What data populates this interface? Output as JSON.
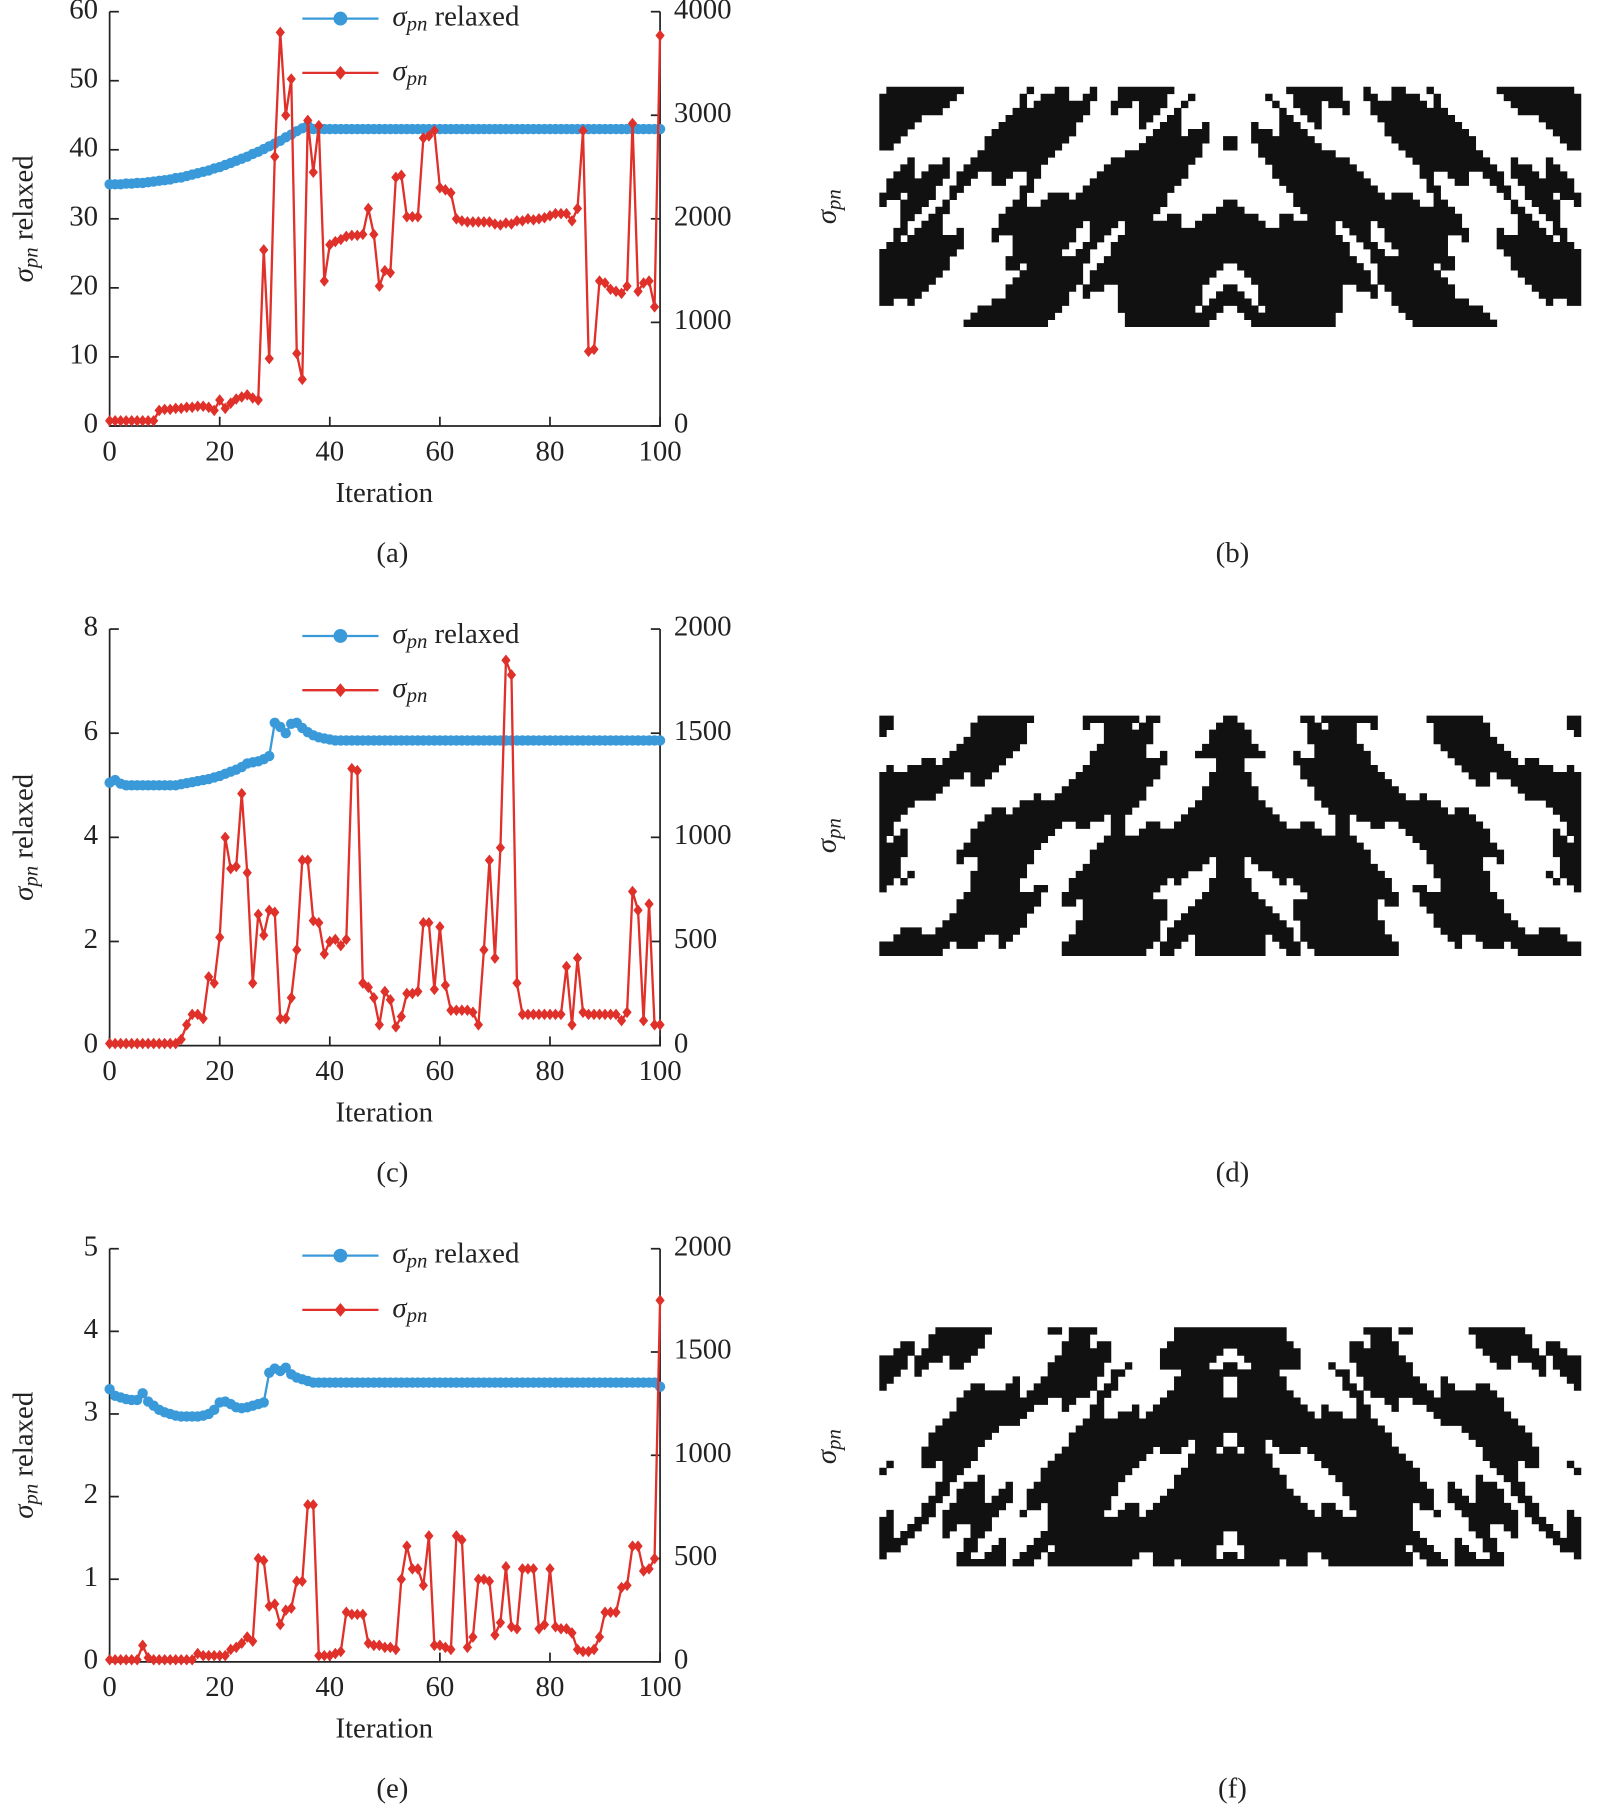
{
  "chart_data": [
    {
      "type": "line",
      "xlabel": "Iteration",
      "ylabel": "σpn relaxed",
      "caption": "(a)",
      "xlim": [
        0,
        100
      ],
      "xticks": [
        0,
        20,
        40,
        60,
        80,
        100
      ],
      "ylim": [
        0,
        60
      ],
      "yticks": [
        0,
        10,
        20,
        30,
        40,
        50,
        60
      ],
      "y2lim": [
        0,
        4000
      ],
      "y2ticks": [
        0,
        1000,
        2000,
        3000,
        4000
      ],
      "x": [
        0,
        1,
        2,
        3,
        4,
        5,
        6,
        7,
        8,
        9,
        10,
        11,
        12,
        13,
        14,
        15,
        16,
        17,
        18,
        19,
        20,
        21,
        22,
        23,
        24,
        25,
        26,
        27,
        28,
        29,
        30,
        31,
        32,
        33,
        34,
        35,
        36,
        37,
        38,
        39,
        40,
        41,
        42,
        43,
        44,
        45,
        46,
        47,
        48,
        49,
        50,
        51,
        52,
        53,
        54,
        55,
        56,
        57,
        58,
        59,
        60,
        61,
        62,
        63,
        64,
        65,
        66,
        67,
        68,
        69,
        70,
        71,
        72,
        73,
        74,
        75,
        76,
        77,
        78,
        79,
        80,
        81,
        82,
        83,
        84,
        85,
        86,
        87,
        88,
        89,
        90,
        91,
        92,
        93,
        94,
        95,
        96,
        97,
        98,
        99,
        100
      ],
      "series": [
        {
          "name": "σpn relaxed",
          "color": "#3a9ad9",
          "marker": "circle",
          "values": [
            35,
            35,
            35,
            35.1,
            35.1,
            35.2,
            35.2,
            35.3,
            35.4,
            35.5,
            35.6,
            35.7,
            35.9,
            36,
            36.2,
            36.4,
            36.6,
            36.8,
            37,
            37.3,
            37.5,
            37.8,
            38.1,
            38.4,
            38.7,
            39,
            39.4,
            39.7,
            40.1,
            40.5,
            40.9,
            41.3,
            41.8,
            42.2,
            42.7,
            43.1,
            43.5,
            43,
            43,
            43,
            43,
            43,
            43,
            43,
            43,
            43,
            43,
            43,
            43,
            43,
            43,
            43,
            43,
            43,
            43,
            43,
            43,
            43,
            43,
            43,
            43,
            43,
            43,
            43,
            43,
            43,
            43,
            43,
            43,
            43,
            43,
            43,
            43,
            43,
            43,
            43,
            43,
            43,
            43,
            43,
            43,
            43,
            43,
            43,
            43,
            43,
            43,
            43,
            43,
            43,
            43,
            43,
            43,
            43,
            43,
            43,
            43,
            43,
            43,
            43,
            43
          ]
        },
        {
          "name": "σpn",
          "color": "#e0302a",
          "marker": "diamond",
          "axis": "y2",
          "values": [
            50,
            50,
            50,
            50,
            50,
            50,
            50,
            50,
            50,
            150,
            160,
            160,
            170,
            170,
            180,
            180,
            190,
            190,
            180,
            150,
            250,
            170,
            220,
            260,
            280,
            300,
            270,
            250,
            1700,
            650,
            2600,
            3800,
            3000,
            3350,
            700,
            450,
            2950,
            2450,
            2900,
            1400,
            1750,
            1780,
            1800,
            1830,
            1840,
            1840,
            1850,
            2100,
            1850,
            1350,
            1500,
            1480,
            2400,
            2420,
            2020,
            2020,
            2020,
            2780,
            2800,
            2850,
            2300,
            2280,
            2250,
            2000,
            1980,
            1970,
            1970,
            1970,
            1970,
            1970,
            1950,
            1940,
            1960,
            1950,
            1980,
            1980,
            2000,
            1990,
            2000,
            2010,
            2030,
            2050,
            2050,
            2050,
            1980,
            2100,
            2850,
            720,
            740,
            1400,
            1380,
            1320,
            1300,
            1280,
            1350,
            2920,
            1300,
            1380,
            1400,
            1150,
            3770
          ]
        }
      ]
    },
    {
      "type": "line",
      "xlabel": "Iteration",
      "ylabel": "σpn relaxed",
      "caption": "(c)",
      "xlim": [
        0,
        100
      ],
      "xticks": [
        0,
        20,
        40,
        60,
        80,
        100
      ],
      "ylim": [
        0,
        8
      ],
      "yticks": [
        0,
        2,
        4,
        6,
        8
      ],
      "y2lim": [
        0,
        2000
      ],
      "y2ticks": [
        0,
        500,
        1000,
        1500,
        2000
      ],
      "x": [
        0,
        1,
        2,
        3,
        4,
        5,
        6,
        7,
        8,
        9,
        10,
        11,
        12,
        13,
        14,
        15,
        16,
        17,
        18,
        19,
        20,
        21,
        22,
        23,
        24,
        25,
        26,
        27,
        28,
        29,
        30,
        31,
        32,
        33,
        34,
        35,
        36,
        37,
        38,
        39,
        40,
        41,
        42,
        43,
        44,
        45,
        46,
        47,
        48,
        49,
        50,
        51,
        52,
        53,
        54,
        55,
        56,
        57,
        58,
        59,
        60,
        61,
        62,
        63,
        64,
        65,
        66,
        67,
        68,
        69,
        70,
        71,
        72,
        73,
        74,
        75,
        76,
        77,
        78,
        79,
        80,
        81,
        82,
        83,
        84,
        85,
        86,
        87,
        88,
        89,
        90,
        91,
        92,
        93,
        94,
        95,
        96,
        97,
        98,
        99,
        100
      ],
      "series": [
        {
          "name": "σpn relaxed",
          "color": "#3a9ad9",
          "marker": "circle",
          "values": [
            5.05,
            5.1,
            5.03,
            5,
            5,
            5,
            5,
            5,
            5,
            5,
            5,
            5,
            5,
            5.02,
            5.04,
            5.06,
            5.08,
            5.1,
            5.12,
            5.15,
            5.18,
            5.22,
            5.26,
            5.3,
            5.35,
            5.42,
            5.44,
            5.46,
            5.5,
            5.56,
            6.2,
            6.12,
            6,
            6.18,
            6.2,
            6.1,
            6.02,
            5.96,
            5.92,
            5.9,
            5.88,
            5.86,
            5.86,
            5.86,
            5.86,
            5.86,
            5.86,
            5.86,
            5.86,
            5.86,
            5.86,
            5.86,
            5.86,
            5.86,
            5.86,
            5.86,
            5.86,
            5.86,
            5.86,
            5.86,
            5.86,
            5.86,
            5.86,
            5.86,
            5.86,
            5.86,
            5.86,
            5.86,
            5.86,
            5.86,
            5.86,
            5.86,
            5.86,
            5.86,
            5.86,
            5.86,
            5.86,
            5.86,
            5.86,
            5.86,
            5.86,
            5.86,
            5.86,
            5.86,
            5.86,
            5.86,
            5.86,
            5.86,
            5.86,
            5.86,
            5.86,
            5.86,
            5.86,
            5.86,
            5.86,
            5.86,
            5.86,
            5.86,
            5.86,
            5.86,
            5.86
          ]
        },
        {
          "name": "σpn",
          "color": "#e0302a",
          "marker": "diamond",
          "axis": "y2",
          "values": [
            10,
            10,
            10,
            10,
            10,
            10,
            10,
            10,
            10,
            10,
            10,
            10,
            10,
            30,
            100,
            150,
            150,
            130,
            330,
            300,
            520,
            1000,
            850,
            860,
            1210,
            830,
            300,
            630,
            530,
            650,
            640,
            130,
            130,
            230,
            460,
            890,
            890,
            600,
            590,
            440,
            500,
            510,
            480,
            510,
            1330,
            1320,
            300,
            280,
            230,
            100,
            260,
            220,
            90,
            140,
            250,
            250,
            260,
            590,
            590,
            270,
            570,
            290,
            170,
            170,
            170,
            170,
            160,
            100,
            460,
            890,
            420,
            950,
            1850,
            1780,
            300,
            150,
            150,
            150,
            150,
            150,
            150,
            150,
            150,
            380,
            100,
            420,
            160,
            150,
            150,
            150,
            150,
            150,
            150,
            120,
            160,
            740,
            650,
            120,
            680,
            100,
            100
          ]
        }
      ]
    },
    {
      "type": "line",
      "xlabel": "Iteration",
      "ylabel": "σpn relaxed",
      "caption": "(e)",
      "xlim": [
        0,
        100
      ],
      "xticks": [
        0,
        20,
        40,
        60,
        80,
        100
      ],
      "ylim": [
        0,
        5
      ],
      "yticks": [
        0,
        1,
        2,
        3,
        4,
        5
      ],
      "y2lim": [
        0,
        2000
      ],
      "y2ticks": [
        0,
        500,
        1000,
        1500,
        2000
      ],
      "x": [
        0,
        1,
        2,
        3,
        4,
        5,
        6,
        7,
        8,
        9,
        10,
        11,
        12,
        13,
        14,
        15,
        16,
        17,
        18,
        19,
        20,
        21,
        22,
        23,
        24,
        25,
        26,
        27,
        28,
        29,
        30,
        31,
        32,
        33,
        34,
        35,
        36,
        37,
        38,
        39,
        40,
        41,
        42,
        43,
        44,
        45,
        46,
        47,
        48,
        49,
        50,
        51,
        52,
        53,
        54,
        55,
        56,
        57,
        58,
        59,
        60,
        61,
        62,
        63,
        64,
        65,
        66,
        67,
        68,
        69,
        70,
        71,
        72,
        73,
        74,
        75,
        76,
        77,
        78,
        79,
        80,
        81,
        82,
        83,
        84,
        85,
        86,
        87,
        88,
        89,
        90,
        91,
        92,
        93,
        94,
        95,
        96,
        97,
        98,
        99,
        100
      ],
      "series": [
        {
          "name": "σpn relaxed",
          "color": "#3a9ad9",
          "marker": "circle",
          "values": [
            3.3,
            3.22,
            3.2,
            3.18,
            3.17,
            3.17,
            3.25,
            3.15,
            3.1,
            3.05,
            3.02,
            3,
            2.98,
            2.97,
            2.97,
            2.97,
            2.97,
            2.98,
            3,
            3.05,
            3.14,
            3.15,
            3.12,
            3.08,
            3.07,
            3.08,
            3.1,
            3.12,
            3.14,
            3.5,
            3.55,
            3.52,
            3.56,
            3.48,
            3.44,
            3.42,
            3.4,
            3.38,
            3.38,
            3.38,
            3.38,
            3.38,
            3.38,
            3.38,
            3.38,
            3.38,
            3.38,
            3.38,
            3.38,
            3.38,
            3.38,
            3.38,
            3.38,
            3.38,
            3.38,
            3.38,
            3.38,
            3.38,
            3.38,
            3.38,
            3.38,
            3.38,
            3.38,
            3.38,
            3.38,
            3.38,
            3.38,
            3.38,
            3.38,
            3.38,
            3.38,
            3.38,
            3.38,
            3.38,
            3.38,
            3.38,
            3.38,
            3.38,
            3.38,
            3.38,
            3.38,
            3.38,
            3.38,
            3.38,
            3.38,
            3.38,
            3.38,
            3.38,
            3.38,
            3.38,
            3.38,
            3.38,
            3.38,
            3.38,
            3.38,
            3.38,
            3.38,
            3.38,
            3.38,
            3.38,
            3.33
          ]
        },
        {
          "name": "σpn",
          "color": "#e0302a",
          "marker": "diamond",
          "axis": "y2",
          "values": [
            10,
            10,
            10,
            10,
            10,
            10,
            80,
            20,
            10,
            10,
            10,
            10,
            10,
            10,
            10,
            10,
            40,
            30,
            30,
            30,
            30,
            30,
            60,
            70,
            90,
            120,
            100,
            500,
            490,
            270,
            280,
            180,
            250,
            260,
            390,
            390,
            760,
            760,
            30,
            30,
            30,
            40,
            50,
            240,
            230,
            230,
            230,
            90,
            80,
            80,
            70,
            70,
            60,
            400,
            560,
            450,
            450,
            370,
            610,
            80,
            80,
            70,
            60,
            610,
            590,
            70,
            120,
            400,
            400,
            390,
            130,
            190,
            460,
            170,
            160,
            450,
            450,
            450,
            160,
            180,
            450,
            170,
            160,
            160,
            140,
            60,
            50,
            50,
            60,
            120,
            240,
            240,
            240,
            360,
            370,
            560,
            560,
            440,
            450,
            500,
            1750
          ]
        }
      ]
    }
  ],
  "images": [
    {
      "ylabel": "σpn",
      "caption": "(b)"
    },
    {
      "ylabel": "σpn",
      "caption": "(d)"
    },
    {
      "ylabel": "σpn",
      "caption": "(f)"
    }
  ]
}
